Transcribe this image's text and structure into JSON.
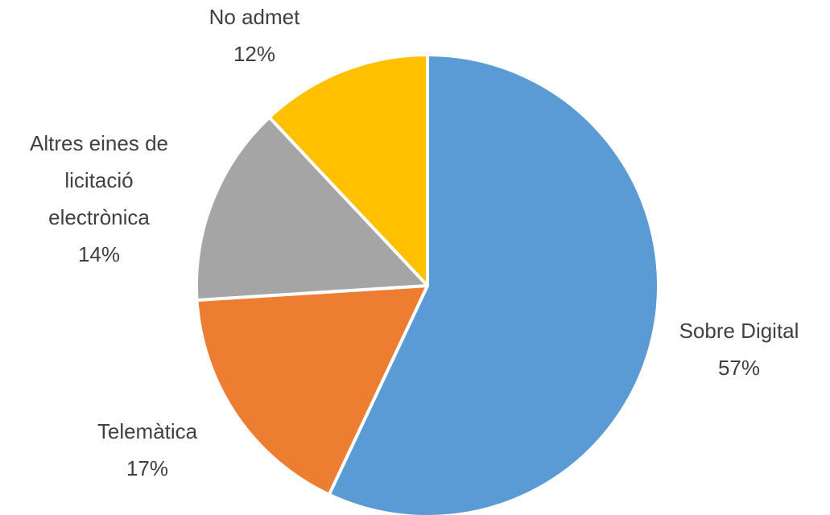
{
  "chart_data": {
    "type": "pie",
    "start_angle_deg": 0,
    "direction": "clockwise",
    "slices": [
      {
        "label_lines": [
          "Sobre Digital"
        ],
        "value": 57,
        "value_label": "57%",
        "color": "#5B9BD5",
        "name": "slice-sobre-digital"
      },
      {
        "label_lines": [
          "Telemàtica"
        ],
        "value": 17,
        "value_label": "17%",
        "color": "#ED7D31",
        "name": "slice-telematica"
      },
      {
        "label_lines": [
          "Altres eines de",
          "licitació",
          "electrònica"
        ],
        "value": 14,
        "value_label": "14%",
        "color": "#A5A5A5",
        "name": "slice-altres-eines"
      },
      {
        "label_lines": [
          "No admet"
        ],
        "value": 12,
        "value_label": "12%",
        "color": "#FFC000",
        "name": "slice-no-admet"
      }
    ]
  }
}
